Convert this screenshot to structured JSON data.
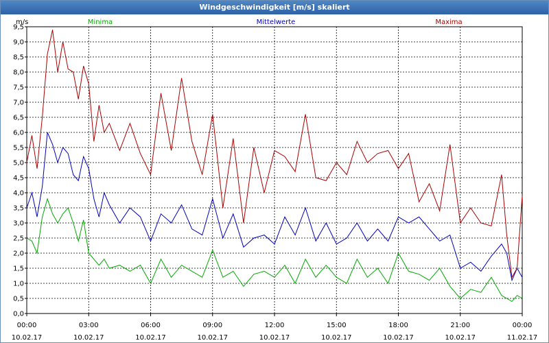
{
  "window": {
    "title": "Windgeschwindigkeit [m/s] skaliert"
  },
  "chart_data": {
    "type": "line",
    "title": "Windgeschwindigkeit [m/s] skaliert",
    "ylabel": "m/s",
    "ylim": [
      0,
      9.5
    ],
    "y_ticks": [
      "0,0",
      "0,5",
      "1,0",
      "1,5",
      "2,0",
      "2,5",
      "3,0",
      "3,5",
      "4,0",
      "4,5",
      "5,0",
      "5,5",
      "6,0",
      "6,5",
      "7,0",
      "7,5",
      "8,0",
      "8,5",
      "9,0",
      "9,5"
    ],
    "xlim": [
      0,
      24
    ],
    "x_ticks": [
      {
        "time": "00:00",
        "date": "10.02.17"
      },
      {
        "time": "03:00",
        "date": "10.02.17"
      },
      {
        "time": "06:00",
        "date": "10.02.17"
      },
      {
        "time": "09:00",
        "date": "10.02.17"
      },
      {
        "time": "12:00",
        "date": "10.02.17"
      },
      {
        "time": "15:00",
        "date": "10.02.17"
      },
      {
        "time": "18:00",
        "date": "10.02.17"
      },
      {
        "time": "21:00",
        "date": "10.02.17"
      },
      {
        "time": "00:00",
        "date": "11.02.17"
      }
    ],
    "grid": true,
    "series": [
      {
        "name": "Minima",
        "color": "#00aa00",
        "x": [
          0,
          0.25,
          0.5,
          0.75,
          1,
          1.25,
          1.5,
          1.75,
          2,
          2.25,
          2.5,
          2.75,
          3,
          3.25,
          3.5,
          3.75,
          4,
          4.5,
          5,
          5.5,
          6,
          6.5,
          7,
          7.5,
          8,
          8.5,
          9,
          9.5,
          10,
          10.5,
          11,
          11.5,
          12,
          12.5,
          13,
          13.5,
          14,
          14.5,
          15,
          15.5,
          16,
          16.5,
          17,
          17.5,
          18,
          18.5,
          19,
          19.5,
          20,
          20.5,
          21,
          21.5,
          22,
          22.5,
          23,
          23.25,
          23.5,
          23.75,
          24
        ],
        "values": [
          2.5,
          2.4,
          2.0,
          3.2,
          3.8,
          3.3,
          3.0,
          3.3,
          3.5,
          3.0,
          2.4,
          3.1,
          2.0,
          1.8,
          1.6,
          1.8,
          1.5,
          1.6,
          1.4,
          1.6,
          1.0,
          1.8,
          1.2,
          1.6,
          1.4,
          1.2,
          2.1,
          1.2,
          1.4,
          0.9,
          1.3,
          1.4,
          1.2,
          1.6,
          1.0,
          1.8,
          1.2,
          1.6,
          1.2,
          1.0,
          1.8,
          1.2,
          1.5,
          1.0,
          2.0,
          1.4,
          1.3,
          1.1,
          1.5,
          0.9,
          0.5,
          0.8,
          0.7,
          1.2,
          0.6,
          0.5,
          0.4,
          0.6,
          0.5
        ]
      },
      {
        "name": "Mittelwerte",
        "color": "#0000bb",
        "x": [
          0,
          0.25,
          0.5,
          0.75,
          1,
          1.25,
          1.5,
          1.75,
          2,
          2.25,
          2.5,
          2.75,
          3,
          3.25,
          3.5,
          3.75,
          4,
          4.5,
          5,
          5.5,
          6,
          6.5,
          7,
          7.5,
          8,
          8.5,
          9,
          9.5,
          10,
          10.5,
          11,
          11.5,
          12,
          12.5,
          13,
          13.5,
          14,
          14.5,
          15,
          15.5,
          16,
          16.5,
          17,
          17.5,
          18,
          18.5,
          19,
          19.5,
          20,
          20.5,
          21,
          21.5,
          22,
          22.5,
          23,
          23.25,
          23.5,
          23.75,
          24
        ],
        "values": [
          3.5,
          4.0,
          3.2,
          4.2,
          6.0,
          5.6,
          5.0,
          5.5,
          5.3,
          4.6,
          4.4,
          5.2,
          4.8,
          3.8,
          3.2,
          4.0,
          3.6,
          3.0,
          3.5,
          3.2,
          2.4,
          3.3,
          3.0,
          3.6,
          2.8,
          2.6,
          3.8,
          2.5,
          3.3,
          2.2,
          2.5,
          2.6,
          2.3,
          3.2,
          2.6,
          3.5,
          2.4,
          3.0,
          2.3,
          2.5,
          3.0,
          2.4,
          2.8,
          2.4,
          3.2,
          3.0,
          3.2,
          2.8,
          2.4,
          2.6,
          1.5,
          1.7,
          1.4,
          1.9,
          2.3,
          2.0,
          1.1,
          1.5,
          1.2
        ]
      },
      {
        "name": "Maxima",
        "color": "#aa0000",
        "x": [
          0,
          0.25,
          0.5,
          0.75,
          1,
          1.25,
          1.5,
          1.75,
          2,
          2.25,
          2.5,
          2.75,
          3,
          3.25,
          3.5,
          3.75,
          4,
          4.5,
          5,
          5.5,
          6,
          6.5,
          7,
          7.5,
          8,
          8.5,
          9,
          9.5,
          10,
          10.5,
          11,
          11.5,
          12,
          12.5,
          13,
          13.5,
          14,
          14.5,
          15,
          15.5,
          16,
          16.5,
          17,
          17.5,
          18,
          18.5,
          19,
          19.5,
          20,
          20.5,
          21,
          21.5,
          22,
          22.5,
          23,
          23.25,
          23.5,
          23.75,
          24
        ],
        "values": [
          5.0,
          5.9,
          4.8,
          6.5,
          8.6,
          9.4,
          8.0,
          9.0,
          8.1,
          8.0,
          7.1,
          8.2,
          7.6,
          5.7,
          6.9,
          6.0,
          6.3,
          5.4,
          6.3,
          5.3,
          4.6,
          7.3,
          5.4,
          7.8,
          5.7,
          4.6,
          6.6,
          3.5,
          5.8,
          3.0,
          5.5,
          4.0,
          5.4,
          5.2,
          4.7,
          6.6,
          4.5,
          4.4,
          5.0,
          4.6,
          5.7,
          5.0,
          5.3,
          5.4,
          4.8,
          5.3,
          3.7,
          4.3,
          3.4,
          5.6,
          3.0,
          3.5,
          3.0,
          2.9,
          4.6,
          2.6,
          1.2,
          1.5,
          3.9
        ]
      }
    ]
  }
}
